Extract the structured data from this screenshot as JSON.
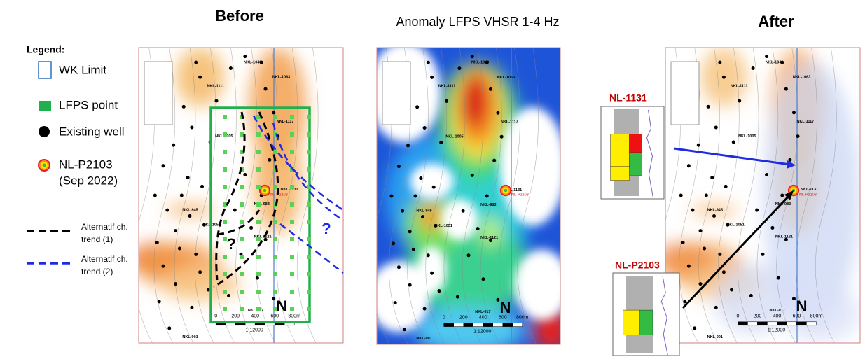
{
  "titles": {
    "before": "Before",
    "anomaly": "Anomaly LFPS VHSR 1-4 Hz",
    "after": "After"
  },
  "legend": {
    "title": "Legend:",
    "wk_limit": "WK Limit",
    "lfps_point": "LFPS point",
    "existing_well": "Existing well",
    "new_well": [
      "NL-P2103",
      "(Sep 2022)"
    ],
    "trend1": [
      "Alternatif ch.",
      "trend (1)"
    ],
    "trend2": [
      "Alternatif ch.",
      "trend (2)"
    ]
  },
  "question_marks": [
    "?",
    "?"
  ],
  "well_labels": [
    "NKL-1040",
    "NKL-1063",
    "NKL-1111",
    "NKL-1117",
    "NKL-1131",
    "NKL-1005",
    "NKL-1051",
    "NKL-983",
    "NKL-945",
    "NKL-1121",
    "NKL-017",
    "NKL-901"
  ],
  "new_well_label": "NL-P2103",
  "scale": {
    "ticks": [
      "0",
      "200",
      "400",
      "600",
      "800m"
    ],
    "ratio": "1:12000",
    "north": "N"
  },
  "callouts": [
    "NL-1131",
    "NL-P2103"
  ]
}
